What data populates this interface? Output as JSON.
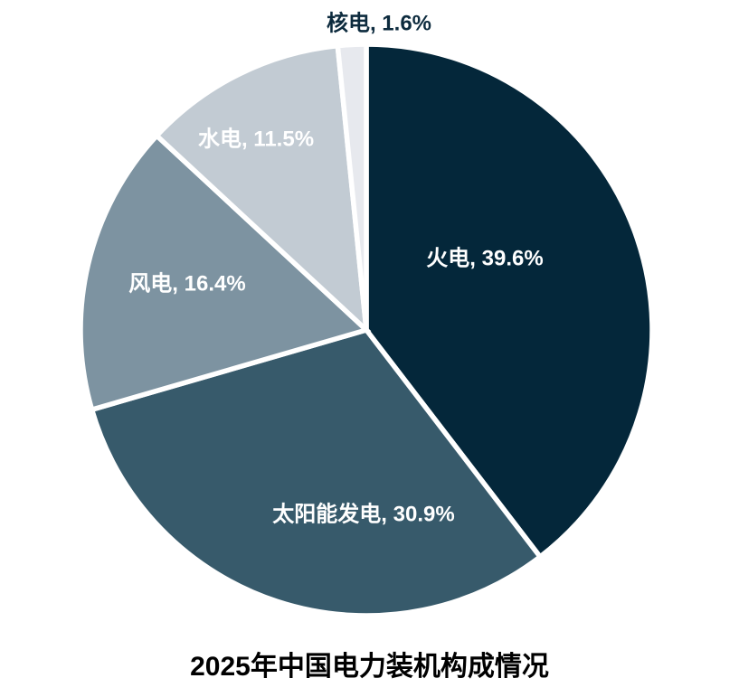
{
  "chart_data": {
    "type": "pie",
    "title": "2025年中国电力装机构成情况",
    "categories": [
      "火电",
      "太阳能发电",
      "风电",
      "水电",
      "核电"
    ],
    "values": [
      39.6,
      30.9,
      16.4,
      11.5,
      1.6
    ],
    "unit": "%",
    "start_angle": "12-oclock",
    "direction": "clockwise",
    "legend_position": "none",
    "separator_color": "#FFFFFF",
    "background_color": "#FFFFFF",
    "title_color": "#000000",
    "slices": [
      {
        "key": "thermal",
        "label": "火电, 39.6%",
        "value": 39.6,
        "color": "#04273A",
        "text_color": "#FFFFFF"
      },
      {
        "key": "solar",
        "label": "太阳能发电, 30.9%",
        "value": 30.9,
        "color": "#375A6B",
        "text_color": "#FFFFFF"
      },
      {
        "key": "wind",
        "label": "风电, 16.4%",
        "value": 16.4,
        "color": "#7D93A1",
        "text_color": "#FFFFFF"
      },
      {
        "key": "hydro",
        "label": "水电, 11.5%",
        "value": 11.5,
        "color": "#C2CBD3",
        "text_color": "#FFFFFF"
      },
      {
        "key": "nuclear",
        "label": "核电, 1.6%",
        "value": 1.6,
        "color": "#E7E9EE",
        "text_color": "#0D2B3E"
      }
    ]
  }
}
